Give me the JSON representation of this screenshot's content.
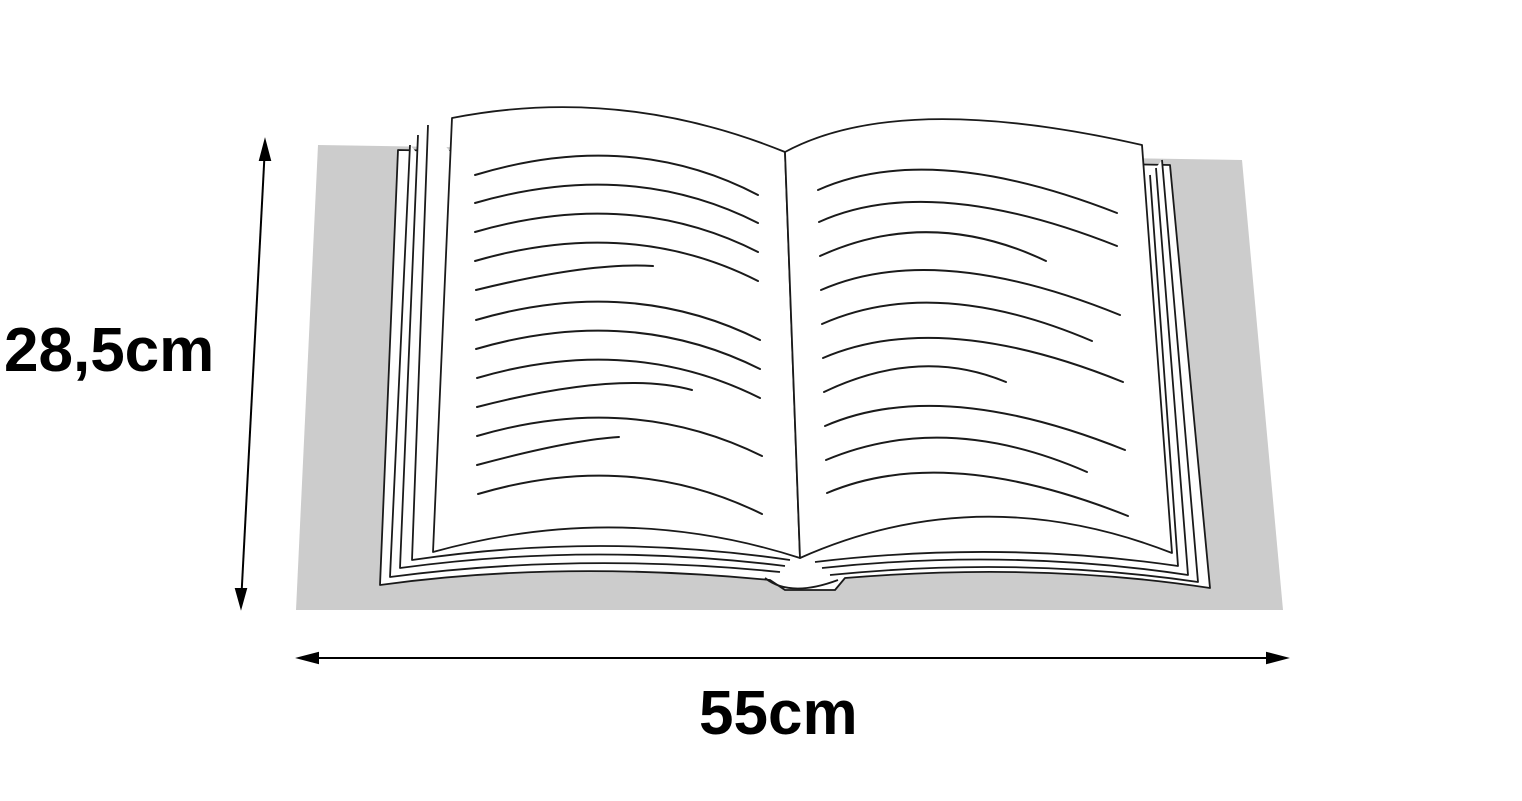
{
  "dimensions": {
    "height_label": "28,5cm",
    "width_label": "55cm"
  },
  "colors": {
    "background": "#ffffff",
    "shadow": "#cccccc",
    "lines": "#1a1a1a",
    "page_fill": "#ffffff"
  },
  "icons": {
    "subject": "open-book-icon",
    "arrows": "double-headed-arrow"
  }
}
